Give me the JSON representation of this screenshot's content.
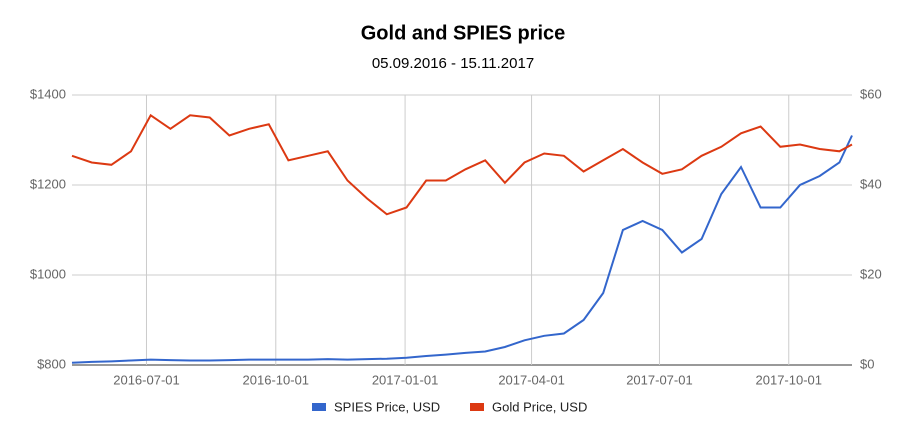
{
  "chart_data": {
    "type": "line",
    "title": "Gold and SPIES price",
    "subtitle": "05.09.2016 - 15.11.2017",
    "x": [
      "2016-05-09",
      "2016-05-23",
      "2016-06-06",
      "2016-06-20",
      "2016-07-04",
      "2016-07-18",
      "2016-08-01",
      "2016-08-15",
      "2016-08-29",
      "2016-09-12",
      "2016-09-26",
      "2016-10-10",
      "2016-10-24",
      "2016-11-07",
      "2016-11-21",
      "2016-12-05",
      "2016-12-19",
      "2017-01-02",
      "2017-01-16",
      "2017-01-30",
      "2017-02-13",
      "2017-02-27",
      "2017-03-13",
      "2017-03-27",
      "2017-04-10",
      "2017-04-24",
      "2017-05-08",
      "2017-05-22",
      "2017-06-05",
      "2017-06-19",
      "2017-07-03",
      "2017-07-17",
      "2017-07-31",
      "2017-08-14",
      "2017-08-28",
      "2017-09-11",
      "2017-09-25",
      "2017-10-09",
      "2017-10-23",
      "2017-11-06",
      "2017-11-15"
    ],
    "xlim": [
      "2016-05-09",
      "2017-11-15"
    ],
    "xticks": [
      "2016-07-01",
      "2016-10-01",
      "2017-01-01",
      "2017-04-01",
      "2017-07-01",
      "2017-10-01"
    ],
    "ylim": [
      800,
      1400
    ],
    "yticks": [
      {
        "value": 800,
        "label": "$800"
      },
      {
        "value": 1000,
        "label": "$1000"
      },
      {
        "value": 1200,
        "label": "$1200"
      },
      {
        "value": 1400,
        "label": "$1400"
      }
    ],
    "y2lim": [
      0,
      60
    ],
    "y2ticks": [
      {
        "value": 0,
        "label": "$0"
      },
      {
        "value": 20,
        "label": "$20"
      },
      {
        "value": 40,
        "label": "$40"
      },
      {
        "value": 60,
        "label": "$60"
      }
    ],
    "grid": true,
    "legend": "bottom",
    "series": [
      {
        "name": "SPIES Price, USD",
        "color": "#3366cc",
        "axis": "y2",
        "values": [
          0.5,
          0.7,
          0.8,
          1.0,
          1.2,
          1.1,
          1.0,
          1.0,
          1.1,
          1.2,
          1.2,
          1.2,
          1.2,
          1.3,
          1.2,
          1.3,
          1.4,
          1.6,
          2.0,
          2.3,
          2.7,
          3.0,
          4.0,
          5.5,
          6.5,
          7.0,
          10,
          16,
          30,
          32,
          30,
          25,
          28,
          38,
          44,
          35,
          35,
          40,
          42,
          45,
          51
        ]
      },
      {
        "name": "Gold Price, USD",
        "color": "#dc3912",
        "values": [
          1265,
          1250,
          1245,
          1275,
          1355,
          1325,
          1355,
          1350,
          1310,
          1325,
          1335,
          1255,
          1265,
          1275,
          1210,
          1170,
          1135,
          1150,
          1210,
          1210,
          1235,
          1255,
          1205,
          1250,
          1270,
          1265,
          1230,
          1255,
          1280,
          1250,
          1225,
          1235,
          1265,
          1285,
          1315,
          1330,
          1285,
          1290,
          1280,
          1275,
          1290
        ]
      }
    ]
  }
}
